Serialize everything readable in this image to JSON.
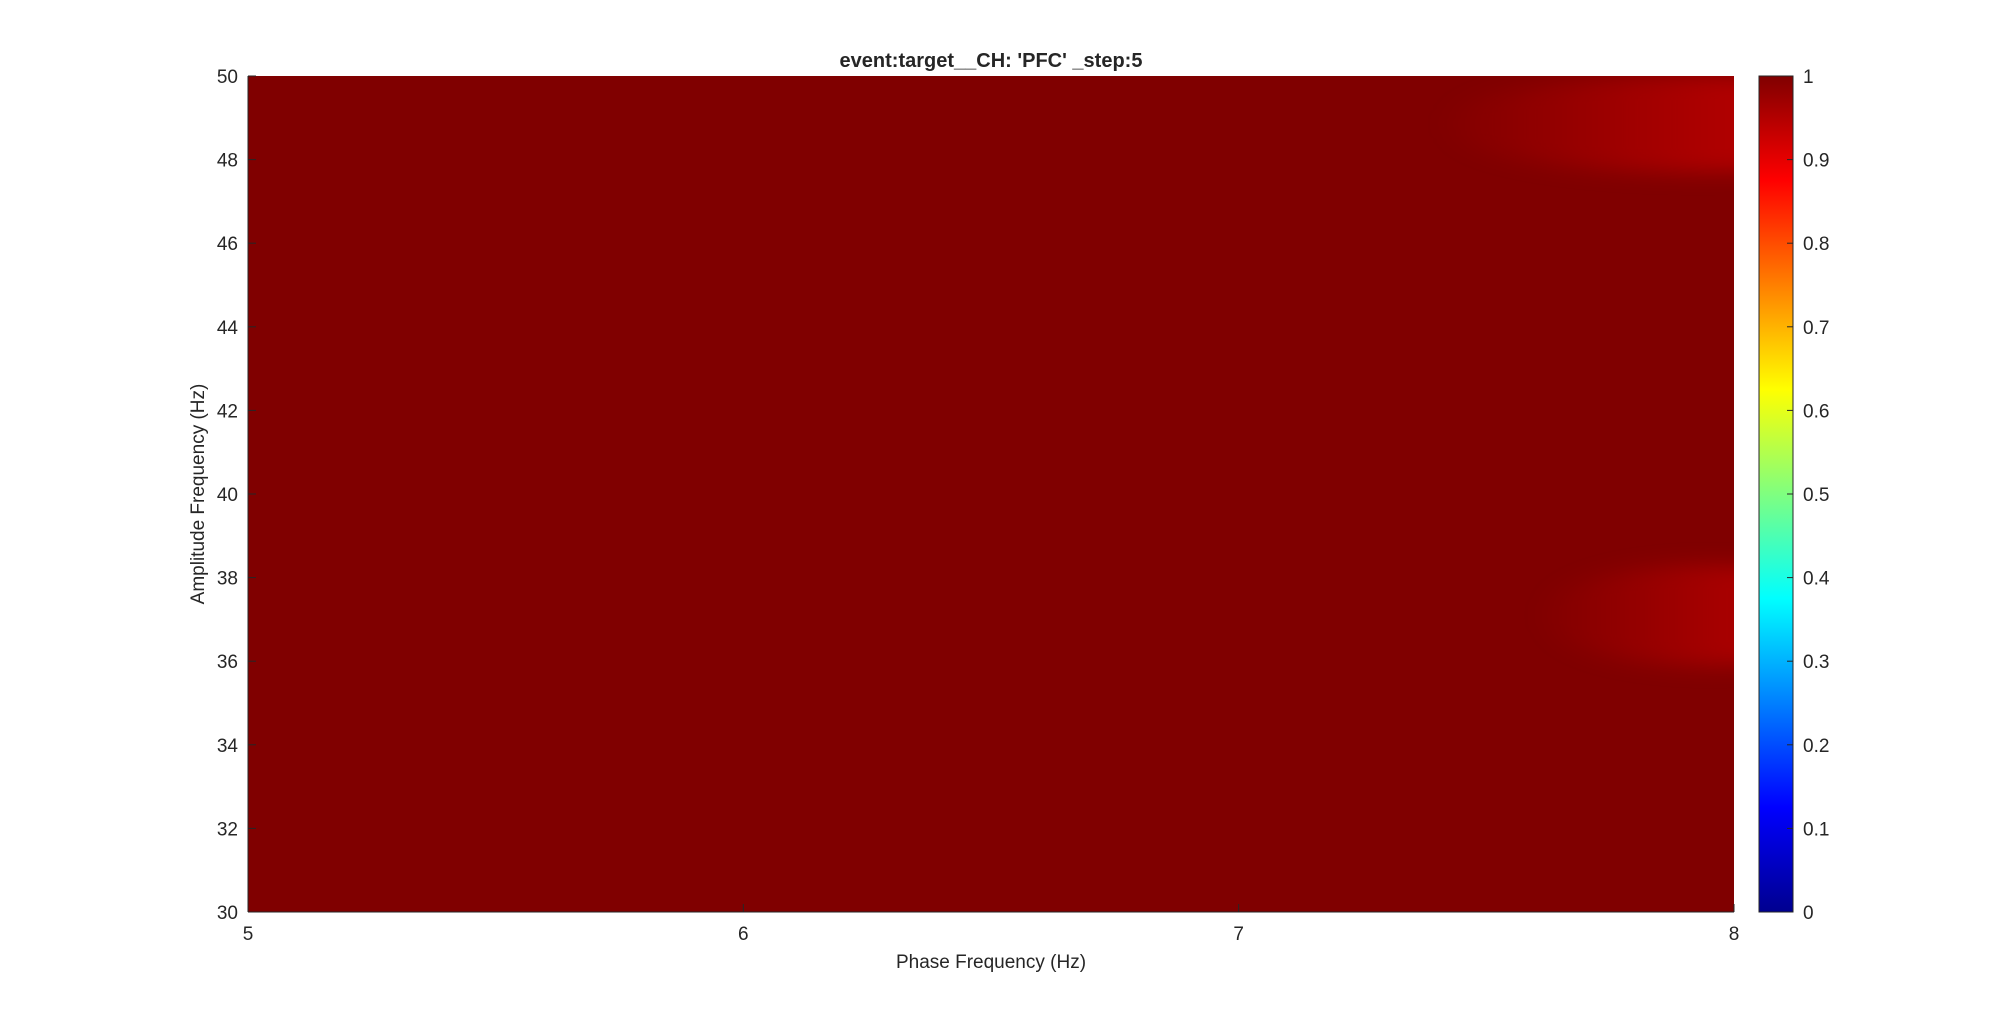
{
  "chart_data": {
    "type": "heatmap",
    "title": "event:target__CH: 'PFC' _step:5",
    "xlabel": "Phase Frequency (Hz)",
    "ylabel": "Amplitude Frequency (Hz)",
    "xlim": [
      5,
      8
    ],
    "ylim": [
      30,
      50
    ],
    "x_ticks": [
      "5",
      "6",
      "7",
      "8"
    ],
    "y_ticks": [
      "30",
      "32",
      "34",
      "36",
      "38",
      "40",
      "42",
      "44",
      "46",
      "48",
      "50"
    ],
    "colorbar": {
      "colormap": "jet",
      "clim": [
        0,
        1
      ],
      "ticks": [
        "0",
        "0.1",
        "0.2",
        "0.3",
        "0.4",
        "0.5",
        "0.6",
        "0.7",
        "0.8",
        "0.9",
        "1"
      ]
    },
    "background_value": 1.0,
    "regions": [
      {
        "x_range": [
          7.4,
          8.0
        ],
        "y_range": [
          47.7,
          50.0
        ],
        "min_value": 0.94,
        "note": "top-right lighter patch"
      },
      {
        "x_range": [
          7.6,
          8.0
        ],
        "y_range": [
          35.9,
          38.3
        ],
        "min_value": 0.95,
        "note": "lower-right lighter patch"
      }
    ]
  }
}
